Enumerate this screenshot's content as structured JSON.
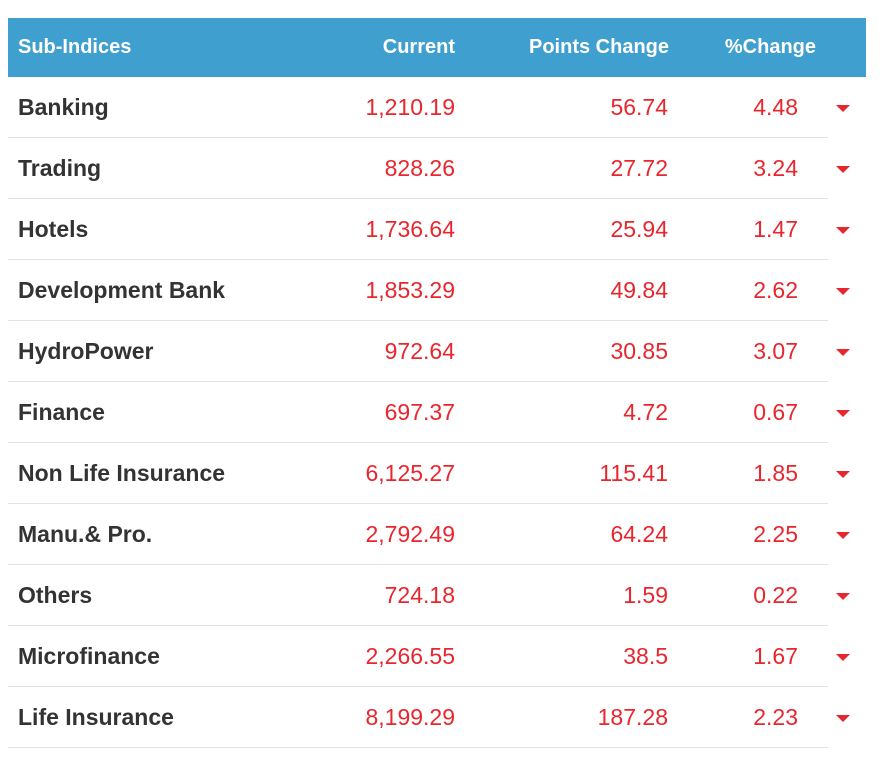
{
  "table": {
    "headers": {
      "name": "Sub-Indices",
      "current": "Current",
      "points_change": "Points Change",
      "pct_change": "%Change"
    },
    "rows": [
      {
        "name": "Banking",
        "current": "1,210.19",
        "points_change": "56.74",
        "pct_change": "4.48",
        "direction": "down",
        "icon": "caret-down-icon"
      },
      {
        "name": "Trading",
        "current": "828.26",
        "points_change": "27.72",
        "pct_change": "3.24",
        "direction": "down",
        "icon": "caret-down-icon"
      },
      {
        "name": "Hotels",
        "current": "1,736.64",
        "points_change": "25.94",
        "pct_change": "1.47",
        "direction": "down",
        "icon": "caret-down-icon"
      },
      {
        "name": "Development Bank",
        "current": "1,853.29",
        "points_change": "49.84",
        "pct_change": "2.62",
        "direction": "down",
        "icon": "caret-down-icon"
      },
      {
        "name": "HydroPower",
        "current": "972.64",
        "points_change": "30.85",
        "pct_change": "3.07",
        "direction": "down",
        "icon": "caret-down-icon"
      },
      {
        "name": "Finance",
        "current": "697.37",
        "points_change": "4.72",
        "pct_change": "0.67",
        "direction": "down",
        "icon": "caret-down-icon"
      },
      {
        "name": "Non Life Insurance",
        "current": "6,125.27",
        "points_change": "115.41",
        "pct_change": "1.85",
        "direction": "down",
        "icon": "caret-down-icon"
      },
      {
        "name": "Manu.& Pro.",
        "current": "2,792.49",
        "points_change": "64.24",
        "pct_change": "2.25",
        "direction": "down",
        "icon": "caret-down-icon"
      },
      {
        "name": "Others",
        "current": "724.18",
        "points_change": "1.59",
        "pct_change": "0.22",
        "direction": "down",
        "icon": "caret-down-icon"
      },
      {
        "name": "Microfinance",
        "current": "2,266.55",
        "points_change": "38.5",
        "pct_change": "1.67",
        "direction": "down",
        "icon": "caret-down-icon"
      },
      {
        "name": "Life Insurance",
        "current": "8,199.29",
        "points_change": "187.28",
        "pct_change": "2.23",
        "direction": "down",
        "icon": "caret-down-icon"
      }
    ]
  },
  "colors": {
    "header_bg": "#3f9fcf",
    "header_text": "#ffffff",
    "name_text": "#333333",
    "negative": "#e8262e",
    "row_divider": "#e3e3e3"
  }
}
